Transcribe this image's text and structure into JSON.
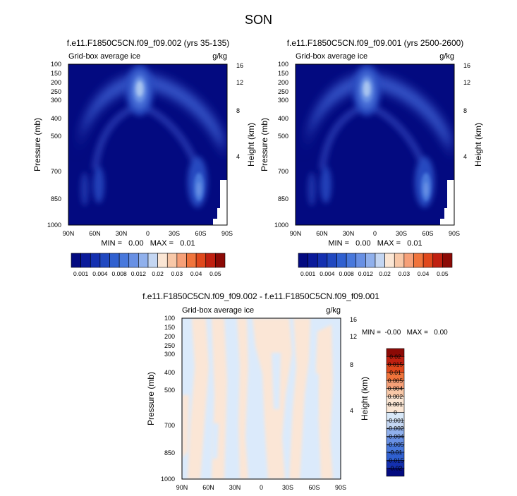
{
  "main_title": "SON",
  "chart_data": [
    {
      "type": "heatmap",
      "id": "left",
      "title": "f.e11.F1850C5CN.f09_f09.002 (yrs 35-135)",
      "left_label": "Grid-box average ice",
      "right_label": "g/kg",
      "ylabel": "Pressure (mb)",
      "ylabel_right": "Height (km)",
      "x_ticks": [
        "90N",
        "60N",
        "30N",
        "0",
        "30S",
        "60S",
        "90S"
      ],
      "y_ticks": [
        "100",
        "150",
        "200",
        "250",
        "300",
        "400",
        "500",
        "700",
        "850",
        "1000"
      ],
      "height_ticks": [
        "16",
        "12",
        "8",
        "4"
      ],
      "min_max": "MIN =   0.00   MAX =   0.01",
      "colorbar_labels": [
        "0.001",
        "0.004",
        "0.008",
        "0.012",
        "0.02",
        "0.03",
        "0.04",
        "0.05"
      ]
    },
    {
      "type": "heatmap",
      "id": "right",
      "title": "f.e11.F1850C5CN.f09_f09.001 (yrs 2500-2600)",
      "left_label": "Grid-box average ice",
      "right_label": "g/kg",
      "ylabel": "Pressure (mb)",
      "ylabel_right": "Height (km)",
      "x_ticks": [
        "90N",
        "60N",
        "30N",
        "0",
        "30S",
        "60S",
        "90S"
      ],
      "y_ticks": [
        "100",
        "150",
        "200",
        "250",
        "300",
        "400",
        "500",
        "700",
        "850",
        "1000"
      ],
      "height_ticks": [
        "16",
        "12",
        "8",
        "4"
      ],
      "min_max": "MIN =   0.00   MAX =   0.01",
      "colorbar_labels": [
        "0.001",
        "0.004",
        "0.008",
        "0.012",
        "0.02",
        "0.03",
        "0.04",
        "0.05"
      ]
    },
    {
      "type": "heatmap",
      "id": "diff",
      "title": "f.e11.F1850C5CN.f09_f09.002 - f.e11.F1850C5CN.f09_f09.001",
      "left_label": "Grid-box average ice",
      "right_label": "g/kg",
      "ylabel": "Pressure (mb)",
      "ylabel_right": "Height (km)",
      "x_ticks": [
        "90N",
        "60N",
        "30N",
        "0",
        "30S",
        "60S",
        "90S"
      ],
      "y_ticks": [
        "100",
        "150",
        "200",
        "250",
        "300",
        "400",
        "500",
        "700",
        "850",
        "1000"
      ],
      "height_ticks": [
        "16",
        "12",
        "8",
        "4"
      ],
      "min_max": "MIN =  -0.00   MAX =   0.00",
      "colorbar_labels": [
        "0.02",
        "0.015",
        "0.01",
        "0.005",
        "0.004",
        "0.002",
        "0.001",
        "0",
        "-0.001",
        "-0.002",
        "-0.004",
        "-0.005",
        "-0.01",
        "-0.015",
        "-0.02"
      ]
    }
  ],
  "colors": {
    "seq_colorbar": [
      "#030a80",
      "#0a1a9a",
      "#1430b0",
      "#2048c0",
      "#3060d0",
      "#4878dc",
      "#6890e4",
      "#90b0ec",
      "#c4d6f2",
      "#fbe6d4",
      "#f8c8a8",
      "#f6a078",
      "#f0743c",
      "#e0481c",
      "#c02010",
      "#8c0a06"
    ],
    "div_colorbar": [
      "#8c0a06",
      "#c02010",
      "#e0481c",
      "#f0743c",
      "#f6a078",
      "#f8c8a8",
      "#fbe6d4",
      "#fbe6d4",
      "#d8e8f8",
      "#c4d6f2",
      "#90b0ec",
      "#6890e4",
      "#4878dc",
      "#3060d0",
      "#1430b0",
      "#030a80"
    ],
    "diff_bg": "#dbeafb",
    "diff_pos": "#fbe6d6"
  }
}
